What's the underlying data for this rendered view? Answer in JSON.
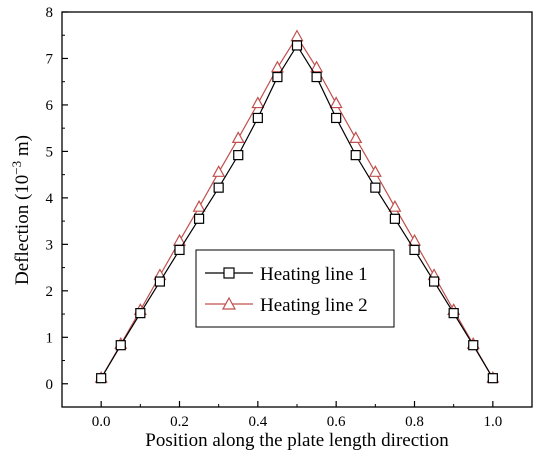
{
  "chart_data": {
    "type": "line",
    "xlabel": "Position along the plate length direction",
    "ylabel_main": "Deflection (10",
    "ylabel_sup": "−3",
    "ylabel_tail": " m)",
    "xlim": [
      -0.1,
      1.1
    ],
    "ylim": [
      -0.5,
      8
    ],
    "xticks": [
      0.0,
      0.2,
      0.4,
      0.6,
      0.8,
      1.0
    ],
    "xtick_labels": [
      "0.0",
      "0.2",
      "0.4",
      "0.6",
      "0.8",
      "1.0"
    ],
    "yticks": [
      0,
      1,
      2,
      3,
      4,
      5,
      6,
      7,
      8
    ],
    "ytick_labels": [
      "0",
      "1",
      "2",
      "3",
      "4",
      "5",
      "6",
      "7",
      "8"
    ],
    "grid": false,
    "legend_position": "center",
    "series": [
      {
        "name": "Heating line 1",
        "marker": "square",
        "color": "#000000",
        "x": [
          0.0,
          0.05,
          0.1,
          0.15,
          0.2,
          0.25,
          0.3,
          0.35,
          0.4,
          0.45,
          0.5,
          0.55,
          0.6,
          0.65,
          0.7,
          0.75,
          0.8,
          0.85,
          0.9,
          0.95,
          1.0
        ],
        "y": [
          0.12,
          0.83,
          1.52,
          2.2,
          2.88,
          3.55,
          4.22,
          4.92,
          5.72,
          6.6,
          7.28,
          6.6,
          5.72,
          4.92,
          4.22,
          3.55,
          2.88,
          2.2,
          1.52,
          0.83,
          0.12
        ]
      },
      {
        "name": "Heating line 2",
        "marker": "triangle",
        "color": "#c0504d",
        "x": [
          0.0,
          0.05,
          0.1,
          0.15,
          0.2,
          0.25,
          0.3,
          0.35,
          0.4,
          0.45,
          0.5,
          0.55,
          0.6,
          0.65,
          0.7,
          0.75,
          0.8,
          0.85,
          0.9,
          0.95,
          1.0
        ],
        "y": [
          0.12,
          0.85,
          1.58,
          2.33,
          3.07,
          3.8,
          4.55,
          5.28,
          6.03,
          6.8,
          7.47,
          6.8,
          6.03,
          5.28,
          4.55,
          3.8,
          3.07,
          2.33,
          1.58,
          0.85,
          0.12
        ]
      }
    ]
  }
}
